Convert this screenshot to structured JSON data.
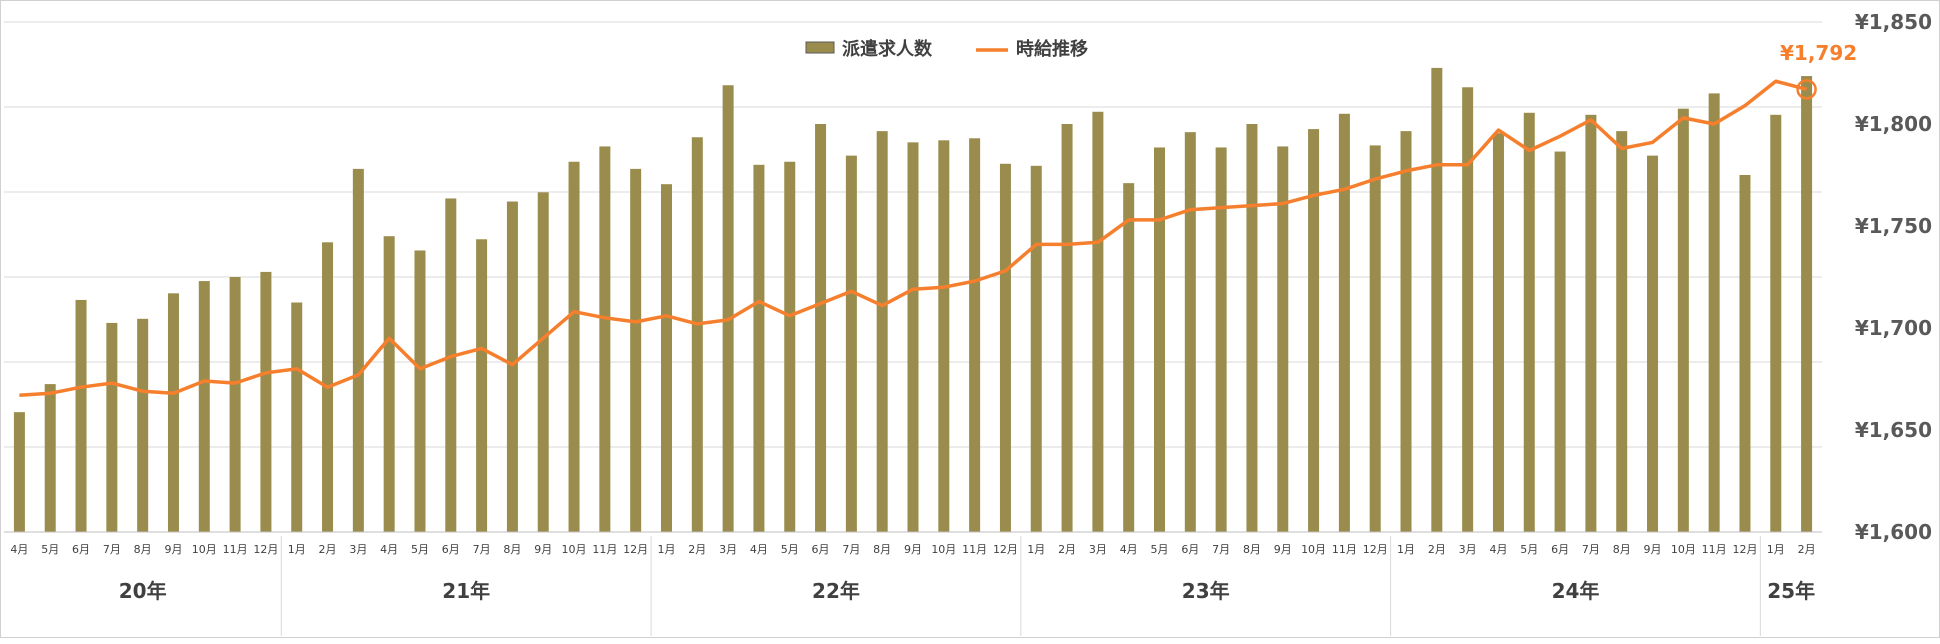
{
  "chart_data": {
    "type": "bar",
    "title": "",
    "xlabel": "",
    "ylabel": "",
    "categories": [
      "4月",
      "5月",
      "6月",
      "7月",
      "8月",
      "9月",
      "10月",
      "11月",
      "12月",
      "1月",
      "2月",
      "3月",
      "4月",
      "5月",
      "6月",
      "7月",
      "8月",
      "9月",
      "10月",
      "11月",
      "12月",
      "1月",
      "2月",
      "3月",
      "4月",
      "5月",
      "6月",
      "7月",
      "8月",
      "9月",
      "10月",
      "11月",
      "12月",
      "1月",
      "2月",
      "3月",
      "4月",
      "5月",
      "6月",
      "7月",
      "8月",
      "9月",
      "10月",
      "11月",
      "12月",
      "1月",
      "2月",
      "3月",
      "4月",
      "5月",
      "6月",
      "7月",
      "8月",
      "9月",
      "10月",
      "11月",
      "12月",
      "1月",
      "2月"
    ],
    "year_groups": [
      {
        "label": "20年",
        "count": 9
      },
      {
        "label": "21年",
        "count": 12
      },
      {
        "label": "22年",
        "count": 12
      },
      {
        "label": "23年",
        "count": 12
      },
      {
        "label": "24年",
        "count": 12
      },
      {
        "label": "25年",
        "count": 2
      }
    ],
    "series": [
      {
        "name": "派遣求人数",
        "kind": "bar",
        "color": "#9A8C4C",
        "values": [
          0.235,
          0.29,
          0.455,
          0.41,
          0.418,
          0.468,
          0.492,
          0.5,
          0.51,
          0.45,
          0.568,
          0.712,
          0.58,
          0.552,
          0.654,
          0.574,
          0.648,
          0.666,
          0.726,
          0.756,
          0.712,
          0.682,
          0.774,
          0.876,
          0.72,
          0.726,
          0.8,
          0.738,
          0.786,
          0.764,
          0.768,
          0.772,
          0.722,
          0.718,
          0.8,
          0.824,
          0.684,
          0.754,
          0.784,
          0.754,
          0.8,
          0.756,
          0.79,
          0.82,
          0.758,
          0.786,
          0.91,
          0.872,
          0.782,
          0.822,
          0.746,
          0.818,
          0.786,
          0.738,
          0.83,
          0.86,
          0.7,
          0.818,
          0.894
        ]
      },
      {
        "name": "時給推移",
        "kind": "line",
        "color": "#F57F2C",
        "values": [
          1667,
          1668,
          1671,
          1673,
          1669,
          1668,
          1674,
          1673,
          1678,
          1680,
          1671,
          1677,
          1695,
          1680,
          1686,
          1690,
          1682,
          1695,
          1708,
          1705,
          1703,
          1706,
          1702,
          1704,
          1713,
          1706,
          1712,
          1718,
          1711,
          1719,
          1720,
          1723,
          1728,
          1741,
          1741,
          1742,
          1753,
          1753,
          1758,
          1759,
          1760,
          1761,
          1765,
          1768,
          1773,
          1777,
          1780,
          1780,
          1797,
          1787,
          1794,
          1802,
          1788,
          1791,
          1803,
          1800,
          1809,
          1821,
          1817
        ]
      }
    ],
    "y_axis_right": {
      "ylim": [
        1600,
        1850
      ],
      "ticks": [
        "¥1,850",
        "¥1,800",
        "¥1,750",
        "¥1,700",
        "¥1,650",
        "¥1,600"
      ]
    },
    "annotation": {
      "text": "¥1,792",
      "color": "#F57F2C"
    },
    "legend": {
      "placement": "top-center"
    },
    "grid": true
  }
}
